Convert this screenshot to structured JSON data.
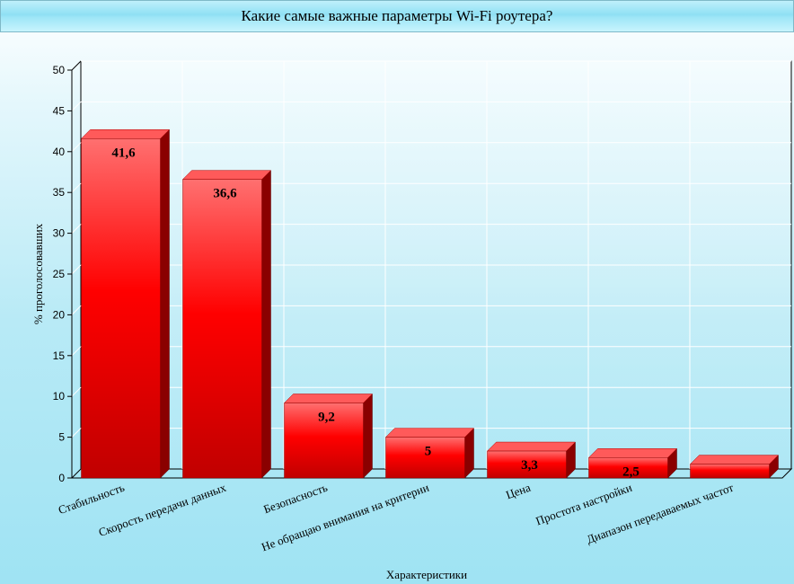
{
  "chart_data": {
    "type": "bar",
    "title": "Какие самые важные параметры Wi-Fi роутера?",
    "xlabel": "Характеристики",
    "ylabel": "% проголосовавших",
    "ylim": [
      0,
      50
    ],
    "yticks": [
      0,
      5,
      10,
      15,
      20,
      25,
      30,
      35,
      40,
      45,
      50
    ],
    "grid": true,
    "categories": [
      "Стабильность",
      "Скорость передачи данных",
      "Безопасность",
      "Не обращаю внимания на критерии",
      "Цена",
      "Простота настройки",
      "Диапазон передаваемых частот"
    ],
    "values": [
      41.6,
      36.6,
      9.2,
      5,
      3.3,
      2.5,
      1.7
    ],
    "data_labels": [
      "41,6",
      "36,6",
      "9,2",
      "5",
      "3,3",
      "2,5",
      ""
    ],
    "bar_color": "#ff0000",
    "bar_top_color": "#ff5a5a",
    "bar_side_color": "#8a0000"
  }
}
